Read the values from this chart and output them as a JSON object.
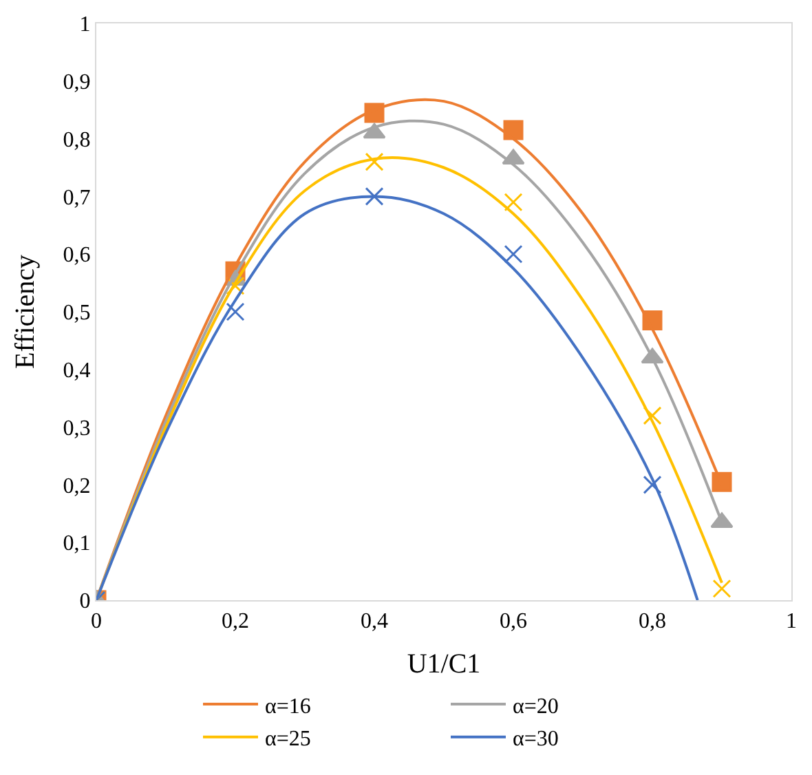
{
  "chart_data": {
    "type": "scatter",
    "xlabel": "U1/C1",
    "ylabel": "Efficiency",
    "x": [
      0,
      0.2,
      0.4,
      0.6,
      0.8,
      0.9
    ],
    "series": [
      {
        "marker": "square",
        "color": "#ed7d31",
        "values": [
          0,
          0.57,
          0.845,
          0.815,
          0.485,
          0.205
        ]
      },
      {
        "marker": "triangle",
        "color": "#a5a5a5",
        "values": [
          0,
          0.555,
          0.81,
          0.765,
          0.42,
          0.135
        ]
      },
      {
        "marker": "cross",
        "color": "#ffc000",
        "values": [
          0,
          0.545,
          0.76,
          0.69,
          0.32,
          0.02
        ]
      },
      {
        "marker": "cross",
        "color": "#4472c4",
        "values": [
          0,
          0.5,
          0.7,
          0.6,
          0.2,
          null
        ]
      },
      {
        "type": "line",
        "name": "α=16",
        "color": "#ed7d31",
        "x": [
          0,
          0.1,
          0.2,
          0.3,
          0.4,
          0.5,
          0.6,
          0.7,
          0.8,
          0.9
        ],
        "values": [
          0,
          0.32,
          0.58,
          0.76,
          0.85,
          0.865,
          0.8,
          0.67,
          0.47,
          0.2
        ]
      },
      {
        "type": "line",
        "name": "α=20",
        "color": "#a5a5a5",
        "x": [
          0,
          0.1,
          0.2,
          0.3,
          0.4,
          0.5,
          0.6,
          0.7,
          0.8,
          0.9
        ],
        "values": [
          0,
          0.31,
          0.565,
          0.74,
          0.82,
          0.825,
          0.755,
          0.62,
          0.42,
          0.135
        ]
      },
      {
        "type": "line",
        "name": "α=25",
        "color": "#ffc000",
        "x": [
          0,
          0.1,
          0.2,
          0.3,
          0.4,
          0.5,
          0.6,
          0.7,
          0.8,
          0.9
        ],
        "values": [
          0,
          0.3,
          0.55,
          0.71,
          0.765,
          0.75,
          0.67,
          0.52,
          0.31,
          0.03
        ]
      },
      {
        "type": "line",
        "name": "α=30",
        "color": "#4472c4",
        "x": [
          0,
          0.1,
          0.2,
          0.3,
          0.4,
          0.5,
          0.6,
          0.7,
          0.8,
          0.865
        ],
        "values": [
          0,
          0.29,
          0.52,
          0.67,
          0.7,
          0.67,
          0.575,
          0.42,
          0.21,
          0
        ]
      }
    ],
    "xlim": [
      0,
      1
    ],
    "ylim": [
      0,
      1
    ],
    "xticks": [
      0,
      {
        "value": 0.2,
        "label": "0,2"
      },
      {
        "value": 0.4,
        "label": "0,4"
      },
      {
        "value": 0.6,
        "label": "0,6"
      },
      {
        "value": 0.8,
        "label": "0,8"
      },
      1
    ],
    "yticks": [
      0,
      {
        "value": 0.1,
        "label": "0,1"
      },
      {
        "value": 0.2,
        "label": "0,2"
      },
      {
        "value": 0.3,
        "label": "0,3"
      },
      {
        "value": 0.4,
        "label": "0,4"
      },
      {
        "value": 0.5,
        "label": "0,5"
      },
      {
        "value": 0.6,
        "label": "0,6"
      },
      {
        "value": 0.7,
        "label": "0,7"
      },
      {
        "value": 0.8,
        "label": "0,8"
      },
      {
        "value": 0.9,
        "label": "0,9"
      },
      1
    ],
    "legend": "bottom"
  }
}
